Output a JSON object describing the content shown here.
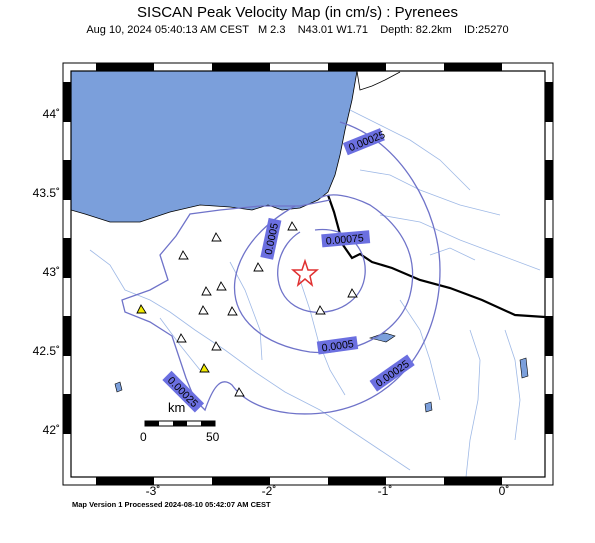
{
  "header": {
    "title": "SISCAN Peak Velocity Map (in cm/s) : Pyrenees",
    "subtitle": "Aug 10, 2024 05:40:13 AM CEST   M 2.3    N43.01 W1.71    Depth: 82.2km    ID:25270"
  },
  "footer": "Map Version 1 Processed 2024-08-10 05:42:07 AM CEST",
  "axes": {
    "y_ticks": [
      "44˚",
      "43.5˚",
      "43˚",
      "42.5˚",
      "42˚"
    ],
    "x_ticks": [
      "-3˚",
      "-2˚",
      "-1˚",
      "0˚"
    ]
  },
  "scale_bar": {
    "unit": "km",
    "min": "0",
    "max": "50"
  },
  "contours": [
    {
      "label": "0.00025",
      "label2": "0.00025",
      "label3": "0.00025"
    },
    {
      "label": "0.0005",
      "label2": "0.0005"
    },
    {
      "label": "0.00075"
    }
  ],
  "colors": {
    "sea": "#7b9fdb",
    "contour": "#6f73c9",
    "label_bg": "#6b6fe0",
    "epicenter": "#e03030",
    "station_yellow": "#f2ea00"
  },
  "epicenter": {
    "icon": "star-icon"
  },
  "stations": {
    "icon": "triangle-icon"
  }
}
